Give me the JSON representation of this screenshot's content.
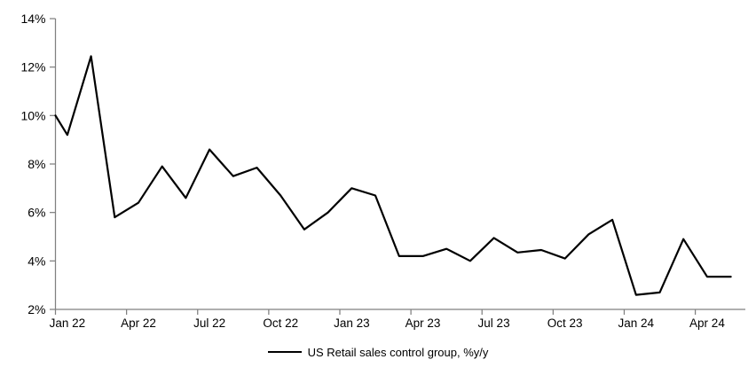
{
  "chart_data": {
    "type": "line",
    "title": "",
    "x": [
      "Jan 22",
      "Feb 22",
      "Mar 22",
      "Apr 22",
      "May 22",
      "Jun 22",
      "Jul 22",
      "Aug 22",
      "Sep 22",
      "Oct 22",
      "Nov 22",
      "Dec 22",
      "Jan 23",
      "Feb 23",
      "Mar 23",
      "Apr 23",
      "May 23",
      "Jun 23",
      "Jul 23",
      "Aug 23",
      "Sep 23",
      "Oct 23",
      "Nov 23",
      "Dec 23",
      "Jan 24",
      "Feb 24",
      "Mar 24",
      "Apr 24",
      "May 24"
    ],
    "series": [
      {
        "name": "US Retail sales control group, %y/y",
        "color": "#000000",
        "values": [
          9.2,
          12.45,
          5.8,
          6.4,
          7.9,
          6.6,
          8.6,
          7.5,
          7.85,
          6.7,
          5.3,
          6.0,
          7.0,
          6.7,
          4.2,
          4.2,
          4.5,
          4.0,
          4.95,
          4.35,
          4.45,
          4.1,
          5.1,
          5.7,
          2.6,
          2.7,
          4.9,
          3.35,
          3.35
        ]
      }
    ],
    "lead_in_value_at_left_axis": 10.0,
    "ylim": [
      2,
      14
    ],
    "ytick_values": [
      14,
      12,
      10,
      8,
      6,
      4,
      2
    ],
    "ytick_suffix": "%",
    "xtick_labels": [
      "Jan 22",
      "Apr 22",
      "Jul 22",
      "Oct 22",
      "Jan 23",
      "Apr 23",
      "Jul 23",
      "Oct 23",
      "Jan 24",
      "Apr 24"
    ],
    "xtick_interval_months": 3,
    "grid": false,
    "legend_position": "bottom-center",
    "axis_color": "#808080",
    "text_color": "#000000",
    "background": "#ffffff"
  }
}
